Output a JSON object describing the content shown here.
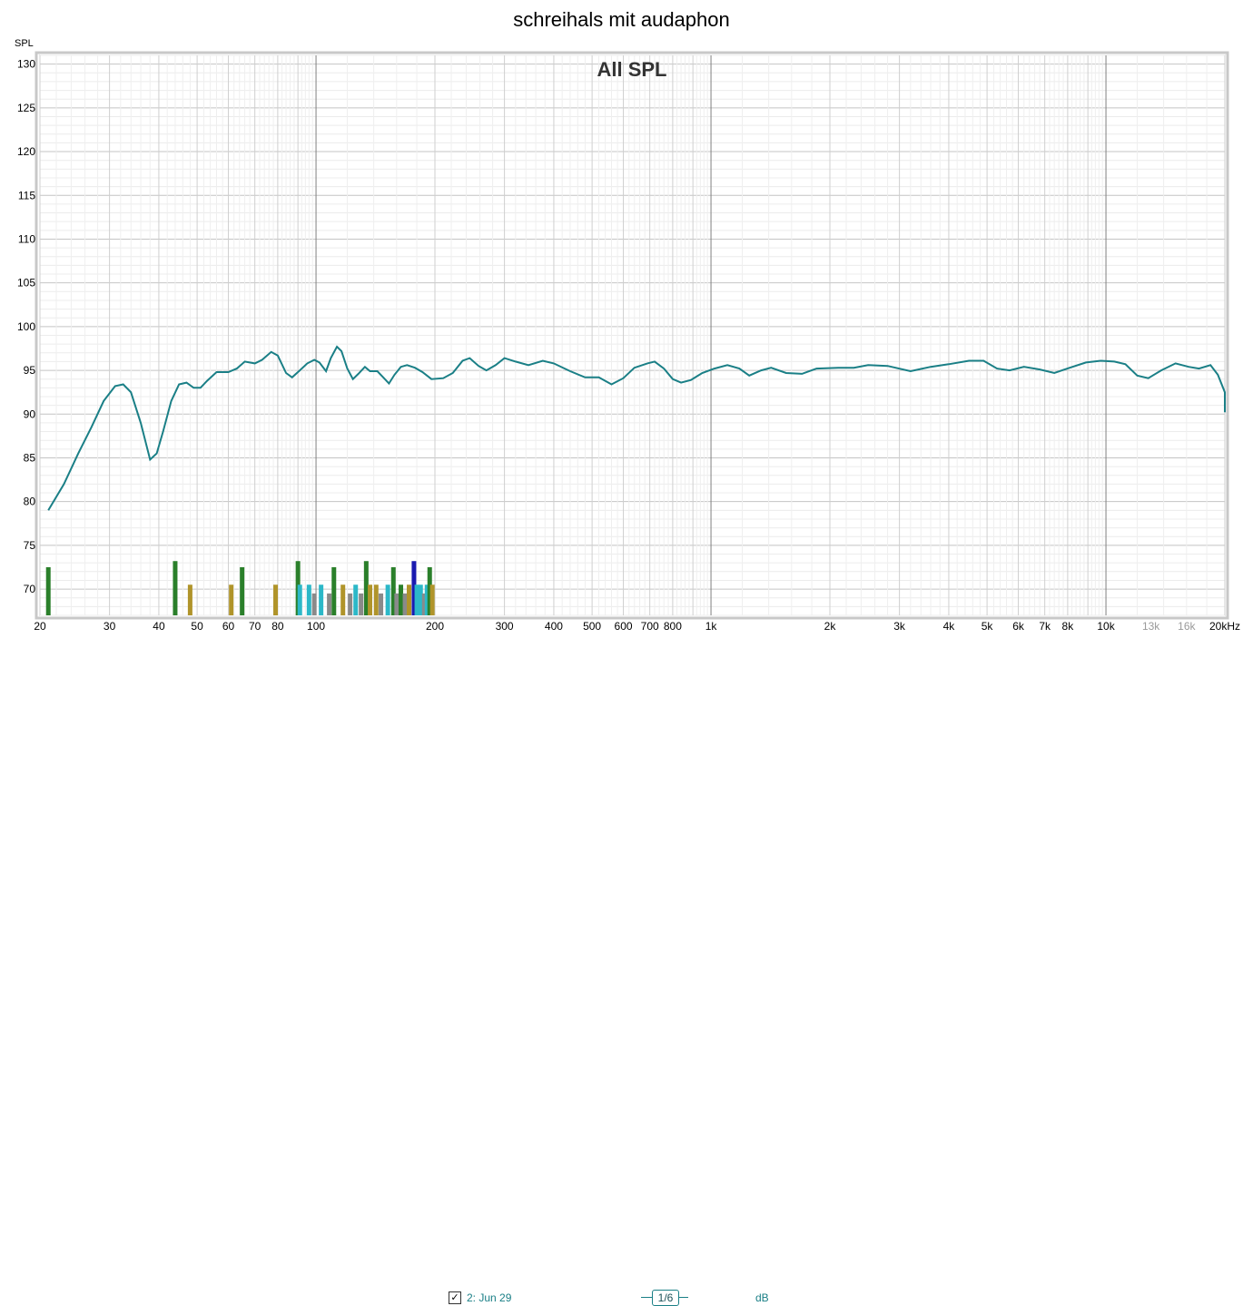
{
  "title": "schreihals mit audaphon",
  "chart_data": {
    "type": "line",
    "title": "All SPL",
    "ylabel": "SPL",
    "xlabel": "",
    "x_scale": "log",
    "xlim": [
      20,
      20000
    ],
    "ylim": [
      67,
      131
    ],
    "y_ticks": [
      70,
      75,
      80,
      85,
      90,
      95,
      100,
      105,
      110,
      115,
      120,
      125,
      130
    ],
    "x_ticks": [
      {
        "value": 20,
        "label": "20"
      },
      {
        "value": 30,
        "label": "30"
      },
      {
        "value": 40,
        "label": "40"
      },
      {
        "value": 50,
        "label": "50"
      },
      {
        "value": 60,
        "label": "60"
      },
      {
        "value": 70,
        "label": "70"
      },
      {
        "value": 80,
        "label": "80"
      },
      {
        "value": 100,
        "label": "100"
      },
      {
        "value": 200,
        "label": "200"
      },
      {
        "value": 300,
        "label": "300"
      },
      {
        "value": 400,
        "label": "400"
      },
      {
        "value": 500,
        "label": "500"
      },
      {
        "value": 600,
        "label": "600"
      },
      {
        "value": 700,
        "label": "700"
      },
      {
        "value": 800,
        "label": "800"
      },
      {
        "value": 1000,
        "label": "1k"
      },
      {
        "value": 2000,
        "label": "2k"
      },
      {
        "value": 3000,
        "label": "3k"
      },
      {
        "value": 4000,
        "label": "4k"
      },
      {
        "value": 5000,
        "label": "5k"
      },
      {
        "value": 6000,
        "label": "6k"
      },
      {
        "value": 7000,
        "label": "7k"
      },
      {
        "value": 8000,
        "label": "8k"
      },
      {
        "value": 10000,
        "label": "10k"
      },
      {
        "value": 13000,
        "label": "13k",
        "muted": true
      },
      {
        "value": 16000,
        "label": "16k",
        "muted": true
      },
      {
        "value": 20000,
        "label": "20kHz"
      }
    ],
    "series": [
      {
        "name": "2: Jun 29",
        "color": "#1a7f86",
        "points": [
          [
            21,
            79
          ],
          [
            23,
            82
          ],
          [
            25,
            85.5
          ],
          [
            27,
            88.5
          ],
          [
            29,
            91.5
          ],
          [
            31,
            93.2
          ],
          [
            32.5,
            93.4
          ],
          [
            34,
            92.5
          ],
          [
            36,
            89
          ],
          [
            38,
            84.8
          ],
          [
            39.5,
            85.5
          ],
          [
            41,
            88
          ],
          [
            43,
            91.5
          ],
          [
            45,
            93.4
          ],
          [
            47,
            93.6
          ],
          [
            49,
            93
          ],
          [
            51,
            93
          ],
          [
            53,
            93.8
          ],
          [
            56,
            94.8
          ],
          [
            60,
            94.8
          ],
          [
            63,
            95.2
          ],
          [
            66,
            96
          ],
          [
            70,
            95.8
          ],
          [
            73,
            96.2
          ],
          [
            77,
            97.1
          ],
          [
            80,
            96.7
          ],
          [
            84,
            94.7
          ],
          [
            87,
            94.2
          ],
          [
            91,
            95
          ],
          [
            95,
            95.8
          ],
          [
            99,
            96.2
          ],
          [
            102,
            95.9
          ],
          [
            106,
            94.9
          ],
          [
            109,
            96.4
          ],
          [
            113,
            97.7
          ],
          [
            116,
            97.2
          ],
          [
            120,
            95.2
          ],
          [
            124,
            94
          ],
          [
            128,
            94.6
          ],
          [
            133,
            95.4
          ],
          [
            137,
            94.9
          ],
          [
            143,
            94.9
          ],
          [
            148,
            94.2
          ],
          [
            153,
            93.5
          ],
          [
            158,
            94.5
          ],
          [
            164,
            95.4
          ],
          [
            170,
            95.6
          ],
          [
            178,
            95.3
          ],
          [
            186,
            94.8
          ],
          [
            196,
            94
          ],
          [
            210,
            94.1
          ],
          [
            222,
            94.7
          ],
          [
            235,
            96.1
          ],
          [
            245,
            96.4
          ],
          [
            258,
            95.5
          ],
          [
            270,
            95
          ],
          [
            285,
            95.6
          ],
          [
            300,
            96.4
          ],
          [
            320,
            96
          ],
          [
            345,
            95.6
          ],
          [
            375,
            96.1
          ],
          [
            400,
            95.8
          ],
          [
            440,
            94.9
          ],
          [
            480,
            94.2
          ],
          [
            520,
            94.2
          ],
          [
            560,
            93.4
          ],
          [
            600,
            94.1
          ],
          [
            640,
            95.3
          ],
          [
            690,
            95.8
          ],
          [
            720,
            96
          ],
          [
            760,
            95.2
          ],
          [
            800,
            94
          ],
          [
            840,
            93.6
          ],
          [
            890,
            93.9
          ],
          [
            950,
            94.7
          ],
          [
            1020,
            95.2
          ],
          [
            1100,
            95.6
          ],
          [
            1180,
            95.2
          ],
          [
            1250,
            94.4
          ],
          [
            1340,
            95
          ],
          [
            1420,
            95.3
          ],
          [
            1550,
            94.7
          ],
          [
            1700,
            94.6
          ],
          [
            1850,
            95.2
          ],
          [
            2100,
            95.3
          ],
          [
            2300,
            95.3
          ],
          [
            2500,
            95.6
          ],
          [
            2800,
            95.5
          ],
          [
            3200,
            94.9
          ],
          [
            3600,
            95.4
          ],
          [
            4000,
            95.7
          ],
          [
            4500,
            96.1
          ],
          [
            4900,
            96.1
          ],
          [
            5300,
            95.2
          ],
          [
            5700,
            95
          ],
          [
            6200,
            95.4
          ],
          [
            6800,
            95.1
          ],
          [
            7400,
            94.7
          ],
          [
            8100,
            95.3
          ],
          [
            8900,
            95.9
          ],
          [
            9700,
            96.1
          ],
          [
            10500,
            96
          ],
          [
            11200,
            95.7
          ],
          [
            12000,
            94.4
          ],
          [
            12800,
            94.1
          ],
          [
            13800,
            95
          ],
          [
            15000,
            95.8
          ],
          [
            16200,
            95.4
          ],
          [
            17200,
            95.2
          ],
          [
            18400,
            95.6
          ],
          [
            19200,
            94.5
          ],
          [
            20000,
            92.5
          ],
          [
            20500,
            90.2
          ]
        ]
      }
    ],
    "peaks": [
      {
        "x": 21,
        "y": 72.5,
        "color": "#2a7f2a"
      },
      {
        "x": 44,
        "y": 73.2,
        "color": "#2a7f2a"
      },
      {
        "x": 48,
        "y": 70.5,
        "color": "#b0942a"
      },
      {
        "x": 61,
        "y": 70.5,
        "color": "#b0942a"
      },
      {
        "x": 65,
        "y": 72.5,
        "color": "#2a7f2a"
      },
      {
        "x": 79,
        "y": 70.5,
        "color": "#b0942a"
      },
      {
        "x": 90,
        "y": 73.2,
        "color": "#2a7f2a"
      },
      {
        "x": 91,
        "y": 70.5,
        "color": "#2cb8c8"
      },
      {
        "x": 96,
        "y": 70.5,
        "color": "#2cb8c8"
      },
      {
        "x": 99,
        "y": 69.5,
        "color": "#8a8a8a"
      },
      {
        "x": 103,
        "y": 70.5,
        "color": "#2cb8c8"
      },
      {
        "x": 108,
        "y": 69.5,
        "color": "#8a8a8a"
      },
      {
        "x": 111,
        "y": 72.5,
        "color": "#2a7f2a"
      },
      {
        "x": 117,
        "y": 70.5,
        "color": "#b0942a"
      },
      {
        "x": 122,
        "y": 69.5,
        "color": "#8a8a8a"
      },
      {
        "x": 126,
        "y": 70.5,
        "color": "#2cb8c8"
      },
      {
        "x": 130,
        "y": 69.5,
        "color": "#8a8a8a"
      },
      {
        "x": 134,
        "y": 73.2,
        "color": "#2a7f2a"
      },
      {
        "x": 137,
        "y": 70.5,
        "color": "#b0942a"
      },
      {
        "x": 142,
        "y": 70.5,
        "color": "#b0942a"
      },
      {
        "x": 146,
        "y": 69.5,
        "color": "#8a8a8a"
      },
      {
        "x": 152,
        "y": 70.5,
        "color": "#2cb8c8"
      },
      {
        "x": 157,
        "y": 72.5,
        "color": "#2a7f2a"
      },
      {
        "x": 160,
        "y": 69.5,
        "color": "#8a8a8a"
      },
      {
        "x": 164,
        "y": 70.5,
        "color": "#2a7f2a"
      },
      {
        "x": 168,
        "y": 69.5,
        "color": "#8a8a8a"
      },
      {
        "x": 172,
        "y": 70.5,
        "color": "#b0942a"
      },
      {
        "x": 177,
        "y": 73.2,
        "color": "#1a1ab0"
      },
      {
        "x": 180,
        "y": 70.5,
        "color": "#2cb8c8"
      },
      {
        "x": 184,
        "y": 70.5,
        "color": "#2cb8c8"
      },
      {
        "x": 188,
        "y": 69.5,
        "color": "#8a8a8a"
      },
      {
        "x": 191,
        "y": 70.5,
        "color": "#2cb8c8"
      },
      {
        "x": 194,
        "y": 72.5,
        "color": "#2a7f2a"
      },
      {
        "x": 197,
        "y": 70.5,
        "color": "#b0942a"
      }
    ]
  },
  "legend": {
    "checked_glyph": "✓",
    "series_label": "2: Jun 29",
    "smoothing": "1/6",
    "unit": "dB"
  },
  "colors": {
    "curve": "#1a7f86",
    "grid": "#cfcfcf",
    "grid_decade": "#808080",
    "frame": "#b8b8b8"
  }
}
